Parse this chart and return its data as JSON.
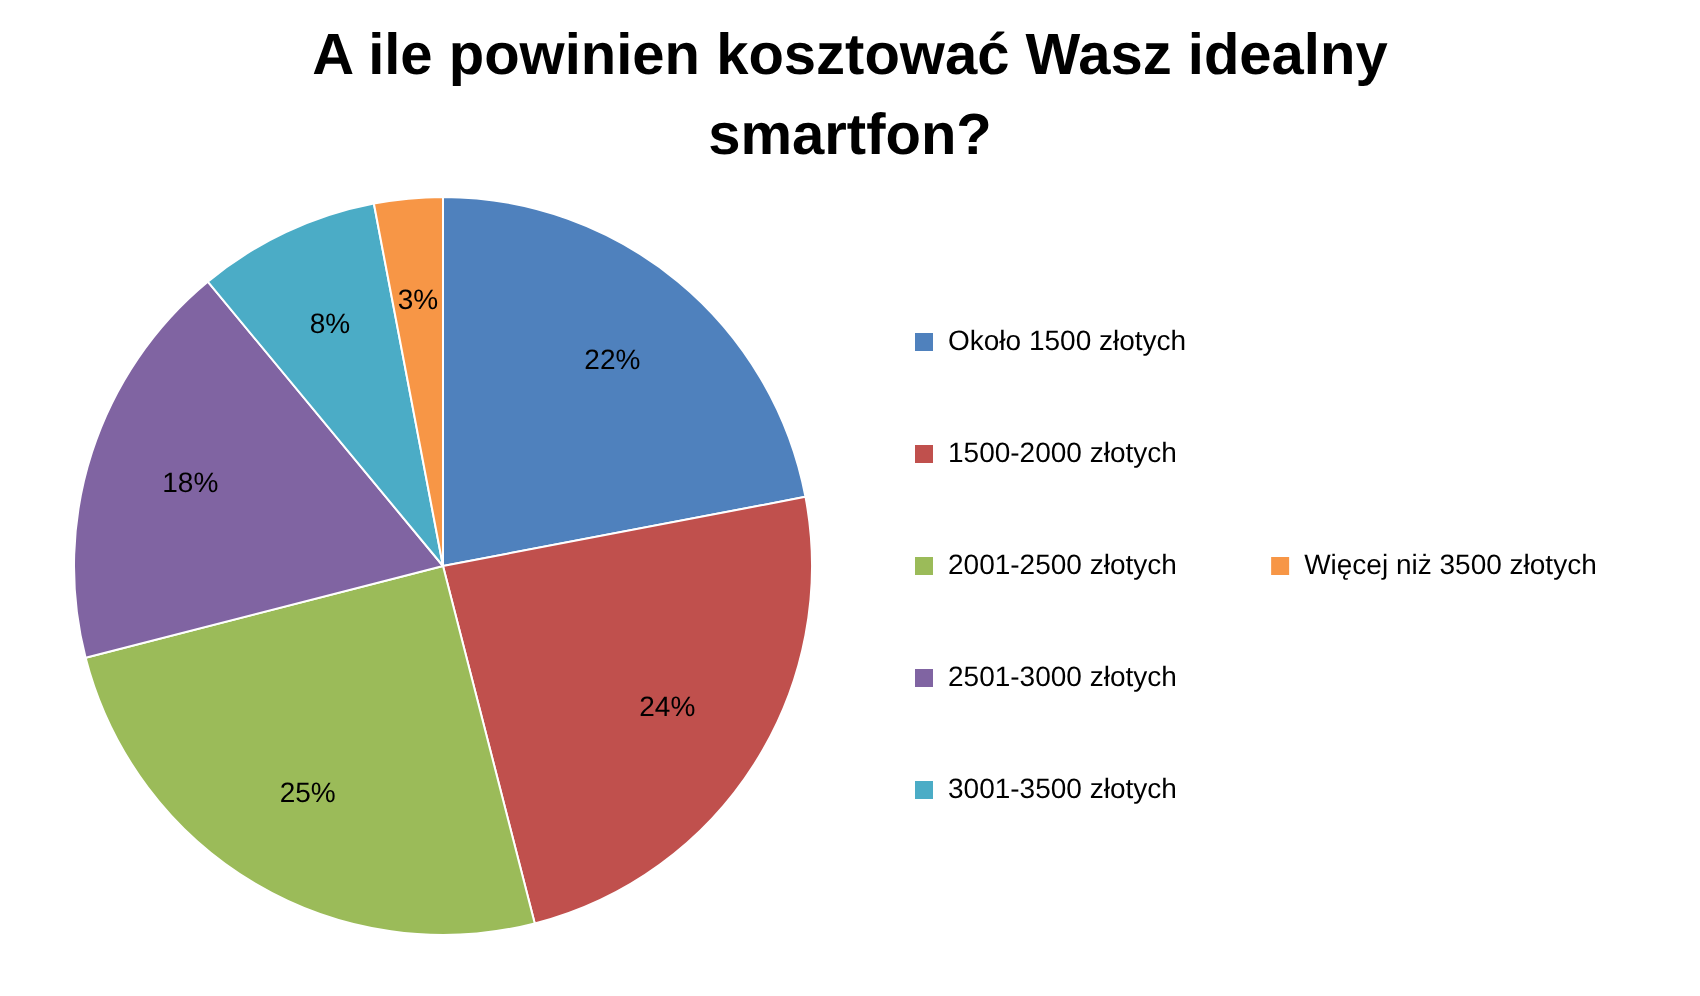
{
  "chart_data": {
    "type": "pie",
    "title": "A ile powinien kosztować Wasz idealny smartfon?",
    "categories": [
      "Około 1500 złotych",
      "1500-2000 złotych",
      "2001-2500 złotych",
      "2501-3000 złotych",
      "3001-3500 złotych",
      "Więcej niż 3500 złotych"
    ],
    "values": [
      22,
      24,
      25,
      18,
      8,
      3
    ],
    "value_labels": [
      "22%",
      "24%",
      "25%",
      "18%",
      "8%",
      "3%"
    ],
    "colors": [
      "#4f81bd",
      "#c0504d",
      "#9bbb59",
      "#8064a2",
      "#4bacc6",
      "#f79646"
    ],
    "legend": "right"
  }
}
